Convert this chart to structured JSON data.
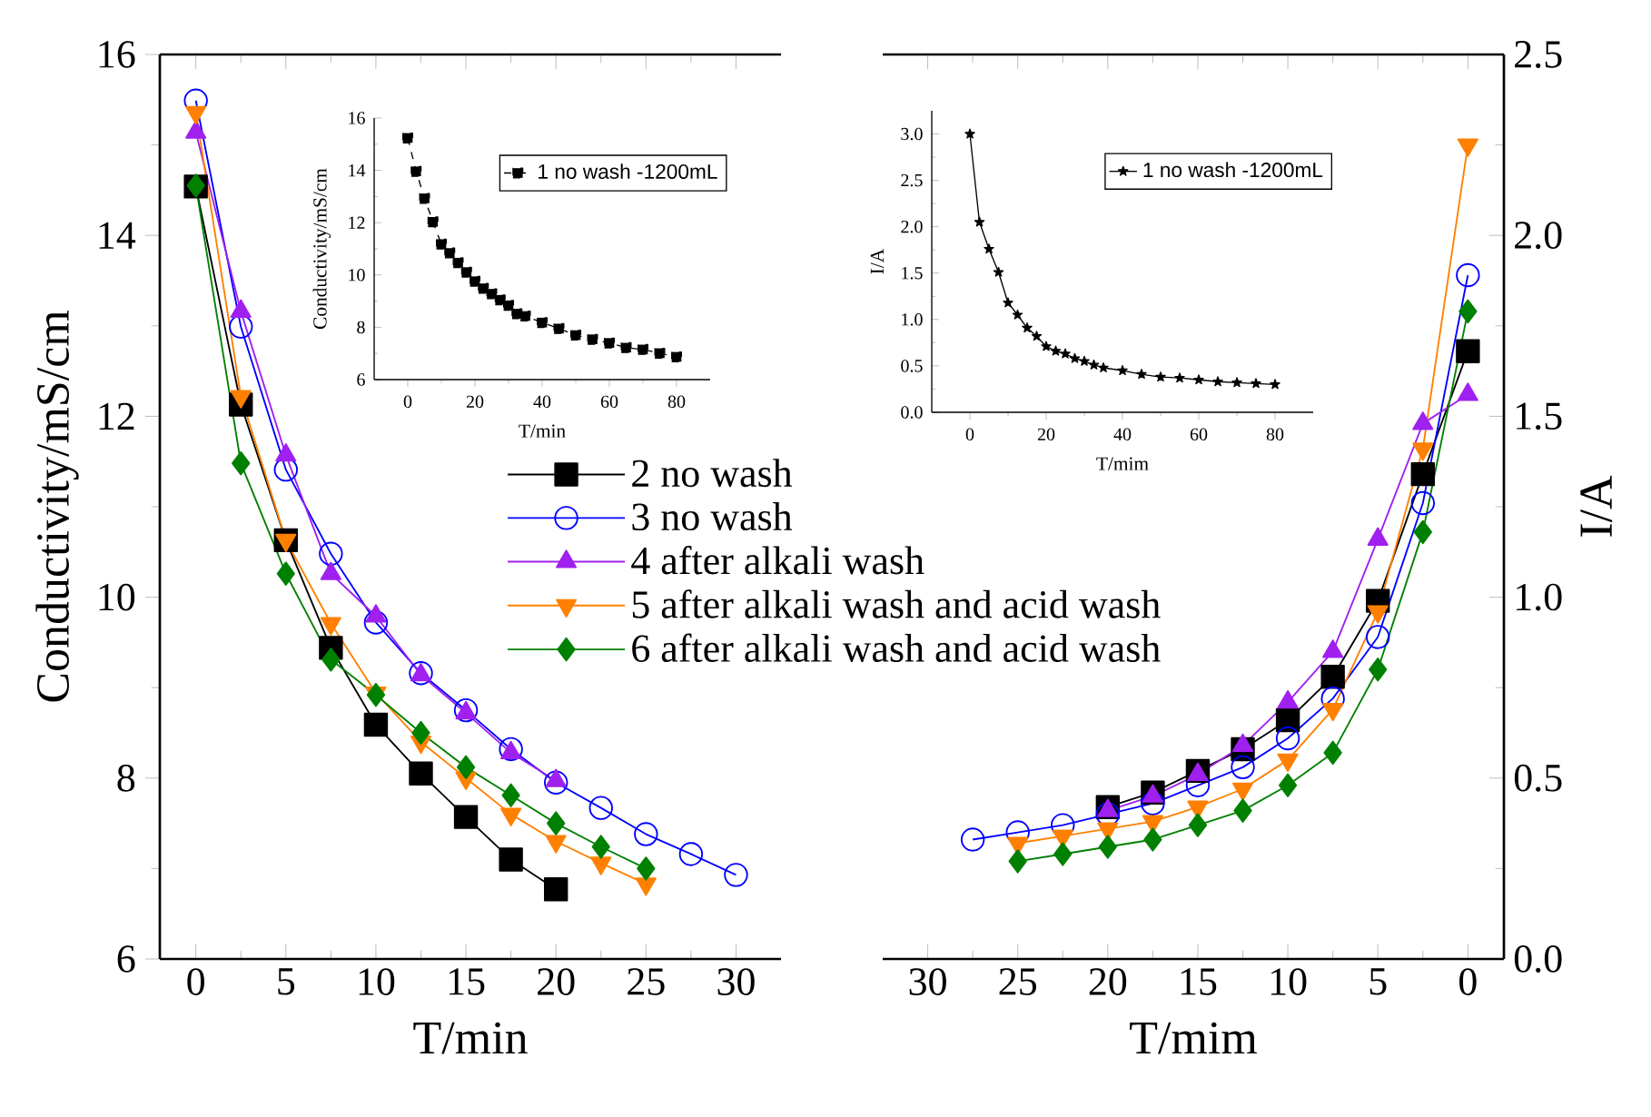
{
  "chart_data": [
    {
      "type": "line",
      "xlabel": "T/min",
      "ylabel": "Conductivity/mS/cm",
      "xlim": [
        -2,
        32.5
      ],
      "ylim": [
        6,
        16
      ],
      "xticks": [
        0,
        5,
        10,
        15,
        20,
        25,
        30
      ],
      "yticks": [
        6,
        8,
        10,
        12,
        14,
        16
      ],
      "legend": "right",
      "series": [
        {
          "name": "2 no wash",
          "color": "#000000",
          "marker": "square",
          "x": [
            0,
            2.5,
            5,
            7.5,
            10,
            12.5,
            15,
            17.5,
            20
          ],
          "values": [
            14.54,
            12.13,
            10.63,
            9.44,
            8.59,
            8.05,
            7.57,
            7.1,
            6.77
          ]
        },
        {
          "name": "3 no wash",
          "color": "#0000ff",
          "marker": "circle",
          "x": [
            0,
            2.5,
            5,
            7.5,
            10,
            12.5,
            15,
            17.5,
            20,
            22.5,
            25,
            27.5,
            30
          ],
          "values": [
            15.49,
            12.99,
            11.41,
            10.48,
            9.72,
            9.16,
            8.75,
            8.32,
            7.95,
            7.67,
            7.38,
            7.16,
            6.93
          ]
        },
        {
          "name": "4 after alkali wash",
          "color": "#a020f0",
          "marker": "triangle",
          "x": [
            0,
            2.5,
            5,
            7.5,
            10,
            12.5,
            15,
            17.5,
            20
          ],
          "values": [
            15.14,
            13.16,
            11.57,
            10.26,
            9.79,
            9.14,
            8.72,
            8.28,
            7.97
          ]
        },
        {
          "name": "5 after alkali wash and acid wash",
          "color": "#ff8000",
          "marker": "triangle-down",
          "x": [
            0,
            2.5,
            5,
            7.5,
            10,
            12.5,
            15,
            17.5,
            20,
            22.5,
            25
          ],
          "values": [
            15.36,
            12.22,
            10.63,
            9.71,
            8.94,
            8.4,
            8.0,
            7.6,
            7.3,
            7.06,
            6.83
          ]
        },
        {
          "name": "6 after alkali wash and acid wash",
          "color": "#008000",
          "marker": "diamond",
          "x": [
            0,
            2.5,
            5,
            7.5,
            10,
            12.5,
            15,
            17.5,
            20,
            22.5,
            25
          ],
          "values": [
            14.55,
            11.48,
            10.26,
            9.31,
            8.92,
            8.5,
            8.12,
            7.81,
            7.5,
            7.24,
            7.0
          ]
        }
      ]
    },
    {
      "type": "line",
      "xlabel": "T/min",
      "ylabel": "Conductivity/mS/cm",
      "xlim": [
        -10,
        90
      ],
      "ylim": [
        6,
        16
      ],
      "xticks": [
        0,
        20,
        40,
        60,
        80
      ],
      "yticks": [
        6,
        8,
        10,
        12,
        14,
        16
      ],
      "legend": "top right",
      "series": [
        {
          "name": "1 no wash -1200mL",
          "color": "#000000",
          "marker": "square",
          "line_style": "dashed",
          "x": [
            0,
            2.5,
            5,
            7.5,
            10,
            12.5,
            15,
            17.5,
            20,
            22.5,
            25,
            27.5,
            30,
            32.5,
            35,
            40,
            45,
            50,
            55,
            60,
            65,
            70,
            75,
            80
          ],
          "values": [
            15.24,
            13.96,
            12.93,
            12.03,
            11.18,
            10.84,
            10.47,
            10.11,
            9.76,
            9.49,
            9.28,
            9.05,
            8.84,
            8.52,
            8.43,
            8.18,
            7.95,
            7.7,
            7.54,
            7.4,
            7.22,
            7.15,
            7.01,
            6.87
          ]
        }
      ]
    },
    {
      "type": "line",
      "xlabel": "T/mim",
      "y2label": "I/A",
      "xlim": [
        32.5,
        -2
      ],
      "y2lim": [
        0,
        2.5
      ],
      "xticks": [
        30,
        25,
        20,
        15,
        10,
        5,
        0
      ],
      "y2ticks": [
        {
          "value": 0,
          "label": "0.0"
        },
        0.5,
        {
          "value": 1,
          "label": "1.0"
        },
        1.5,
        {
          "value": 2,
          "label": "2.0"
        },
        2.5
      ],
      "series": [
        {
          "axis": "y2",
          "color": "#000000",
          "marker": "square",
          "x": [
            0,
            2.5,
            5,
            7.5,
            10,
            12.5,
            15,
            17.5,
            20
          ],
          "values": [
            1.68,
            1.34,
            0.99,
            0.78,
            0.66,
            0.58,
            0.52,
            0.46,
            0.42
          ]
        },
        {
          "axis": "y2",
          "color": "#0000ff",
          "marker": "circle",
          "x": [
            0,
            2.5,
            5,
            7.5,
            10,
            12.5,
            15,
            17.5,
            20,
            22.5,
            25,
            27.5
          ],
          "values": [
            1.89,
            1.26,
            0.89,
            0.72,
            0.61,
            0.53,
            0.48,
            0.43,
            0.4,
            0.37,
            0.35,
            0.33
          ]
        },
        {
          "axis": "y2",
          "color": "#a020f0",
          "marker": "triangle",
          "x": [
            0,
            2.5,
            5,
            7.5,
            10,
            12.5,
            15,
            17.5,
            20
          ],
          "values": [
            1.56,
            1.48,
            1.16,
            0.85,
            0.71,
            0.59,
            0.51,
            0.45,
            0.41
          ]
        },
        {
          "axis": "y2",
          "color": "#ff8000",
          "marker": "triangle-down",
          "x": [
            0,
            2.5,
            5,
            7.5,
            10,
            12.5,
            15,
            17.5,
            20,
            22.5,
            25
          ],
          "values": [
            2.25,
            1.41,
            0.96,
            0.69,
            0.55,
            0.47,
            0.42,
            0.38,
            0.36,
            0.34,
            0.32
          ]
        },
        {
          "axis": "y2",
          "color": "#008000",
          "marker": "diamond",
          "x": [
            0,
            2.5,
            5,
            7.5,
            10,
            12.5,
            15,
            17.5,
            20,
            22.5,
            25
          ],
          "values": [
            1.79,
            1.18,
            0.8,
            0.57,
            0.48,
            0.41,
            0.37,
            0.33,
            0.31,
            0.29,
            0.27
          ]
        }
      ]
    },
    {
      "type": "line",
      "xlabel": "T/mim",
      "ylabel": "I/A",
      "xlim": [
        -10,
        90
      ],
      "ylim": [
        0,
        3.25
      ],
      "xticks": [
        0,
        20,
        40,
        60,
        80
      ],
      "yticks": [
        {
          "value": 0,
          "label": "0.0"
        },
        0.5,
        {
          "value": 1,
          "label": "1.0"
        },
        1.5,
        {
          "value": 2,
          "label": "2.0"
        },
        2.5,
        {
          "value": 3,
          "label": "3.0"
        }
      ],
      "legend": "top right",
      "series": [
        {
          "name": "1 no wash -1200mL",
          "color": "#000000",
          "marker": "star",
          "line_style": "solid",
          "x": [
            0,
            2.5,
            5,
            7.5,
            10,
            12.5,
            15,
            17.5,
            20,
            22.5,
            25,
            27.5,
            30,
            32.5,
            35,
            40,
            45,
            50,
            55,
            60,
            65,
            70,
            75,
            80
          ],
          "values": [
            3.0,
            2.05,
            1.76,
            1.51,
            1.18,
            1.05,
            0.91,
            0.82,
            0.71,
            0.66,
            0.63,
            0.58,
            0.55,
            0.51,
            0.48,
            0.45,
            0.41,
            0.38,
            0.37,
            0.35,
            0.33,
            0.32,
            0.31,
            0.3
          ]
        }
      ]
    }
  ]
}
